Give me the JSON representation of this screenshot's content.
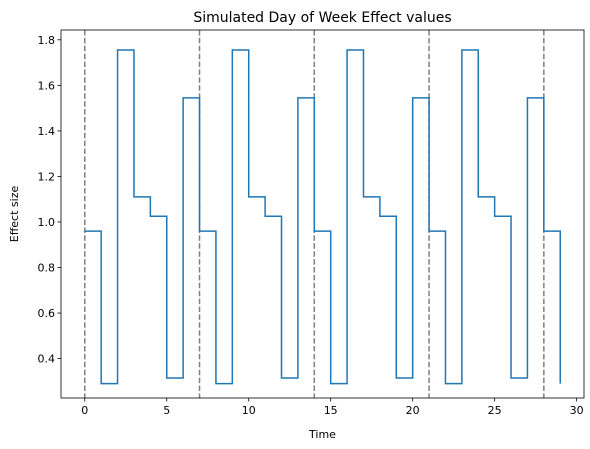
{
  "chart_data": {
    "type": "line",
    "step": "post",
    "title": "Simulated Day of Week Effect values",
    "xlabel": "Time",
    "ylabel": "Effect size",
    "xlim": [
      -1.45,
      30.45
    ],
    "ylim": [
      0.227,
      1.843
    ],
    "xticks": [
      0,
      5,
      10,
      15,
      20,
      25,
      30
    ],
    "yticks": [
      0.4,
      0.6,
      0.8,
      1.0,
      1.2,
      1.4,
      1.6,
      1.8
    ],
    "xtick_labels": [
      "0",
      "5",
      "10",
      "15",
      "20",
      "25",
      "30"
    ],
    "ytick_labels": [
      "0.4",
      "0.6",
      "0.8",
      "1.0",
      "1.2",
      "1.4",
      "1.6",
      "1.8"
    ],
    "grid": false,
    "series": [
      {
        "color": "#1f77b4",
        "x": [
          0,
          1,
          2,
          3,
          4,
          5,
          6,
          7,
          8,
          9,
          10,
          11,
          12,
          13,
          14,
          15,
          16,
          17,
          18,
          19,
          20,
          21,
          22,
          23,
          24,
          25,
          26,
          27,
          28,
          29
        ],
        "y": [
          0.96,
          0.29,
          1.755,
          1.11,
          1.025,
          0.315,
          1.545,
          0.96,
          0.29,
          1.755,
          1.11,
          1.025,
          0.315,
          1.545,
          0.96,
          0.29,
          1.755,
          1.11,
          1.025,
          0.315,
          1.545,
          0.96,
          0.29,
          1.755,
          1.11,
          1.025,
          0.315,
          1.545,
          0.96,
          0.29
        ]
      }
    ],
    "vlines": {
      "x": [
        0,
        7,
        14,
        21,
        28
      ],
      "style": "dashed",
      "color": "#808080"
    }
  }
}
